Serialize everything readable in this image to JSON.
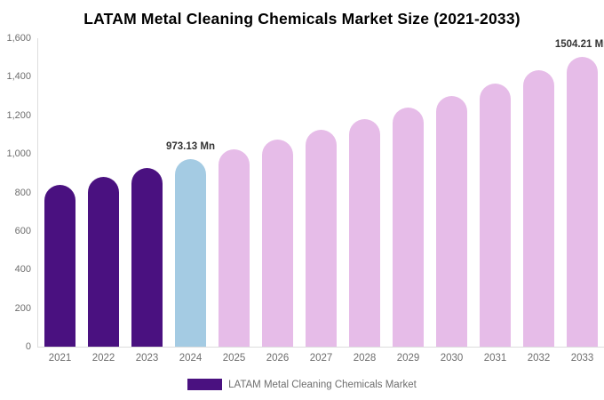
{
  "chart_data": {
    "type": "bar",
    "title": "LATAM Metal Cleaning Chemicals Market Size (2021-2033)",
    "categories": [
      "2021",
      "2022",
      "2023",
      "2024",
      "2025",
      "2026",
      "2027",
      "2028",
      "2029",
      "2030",
      "2031",
      "2032",
      "2033"
    ],
    "values": [
      840.67,
      882.38,
      926.16,
      973.13,
      1021.41,
      1072.08,
      1125.27,
      1181.1,
      1239.69,
      1301.19,
      1365.75,
      1433.51,
      1504.21
    ],
    "bar_colors": [
      "#4A1180",
      "#4A1180",
      "#4A1180",
      "#A4CBE3",
      "#E6BCE8",
      "#E6BCE8",
      "#E6BCE8",
      "#E6BCE8",
      "#E6BCE8",
      "#E6BCE8",
      "#E6BCE8",
      "#E6BCE8",
      "#E6BCE8"
    ],
    "annotations": [
      {
        "category": "2024",
        "text": "973.13 Mn"
      },
      {
        "category": "2033",
        "text": "1504.21 Mn"
      }
    ],
    "yticks": [
      {
        "value": 0,
        "label": "0"
      },
      {
        "value": 200,
        "label": "200"
      },
      {
        "value": 400,
        "label": "400"
      },
      {
        "value": 600,
        "label": "600"
      },
      {
        "value": 800,
        "label": "800"
      },
      {
        "value": 1000,
        "label": "1,000"
      },
      {
        "value": 1200,
        "label": "1,200"
      },
      {
        "value": 1400,
        "label": "1,400"
      },
      {
        "value": 1600,
        "label": "1,600"
      }
    ],
    "ylim": [
      0,
      1600
    ],
    "xlabel": "",
    "ylabel": "",
    "grid": false,
    "legend_position": "bottom",
    "legend": {
      "label": "LATAM Metal Cleaning Chemicals Market",
      "swatch_color": "#4A1180"
    }
  },
  "colors": {
    "background": "#FFFFFF",
    "axis_line": "#DDDDDD",
    "tick_text": "#6E6E6E",
    "annotation_text": "#333333",
    "title_text": "#000000"
  }
}
